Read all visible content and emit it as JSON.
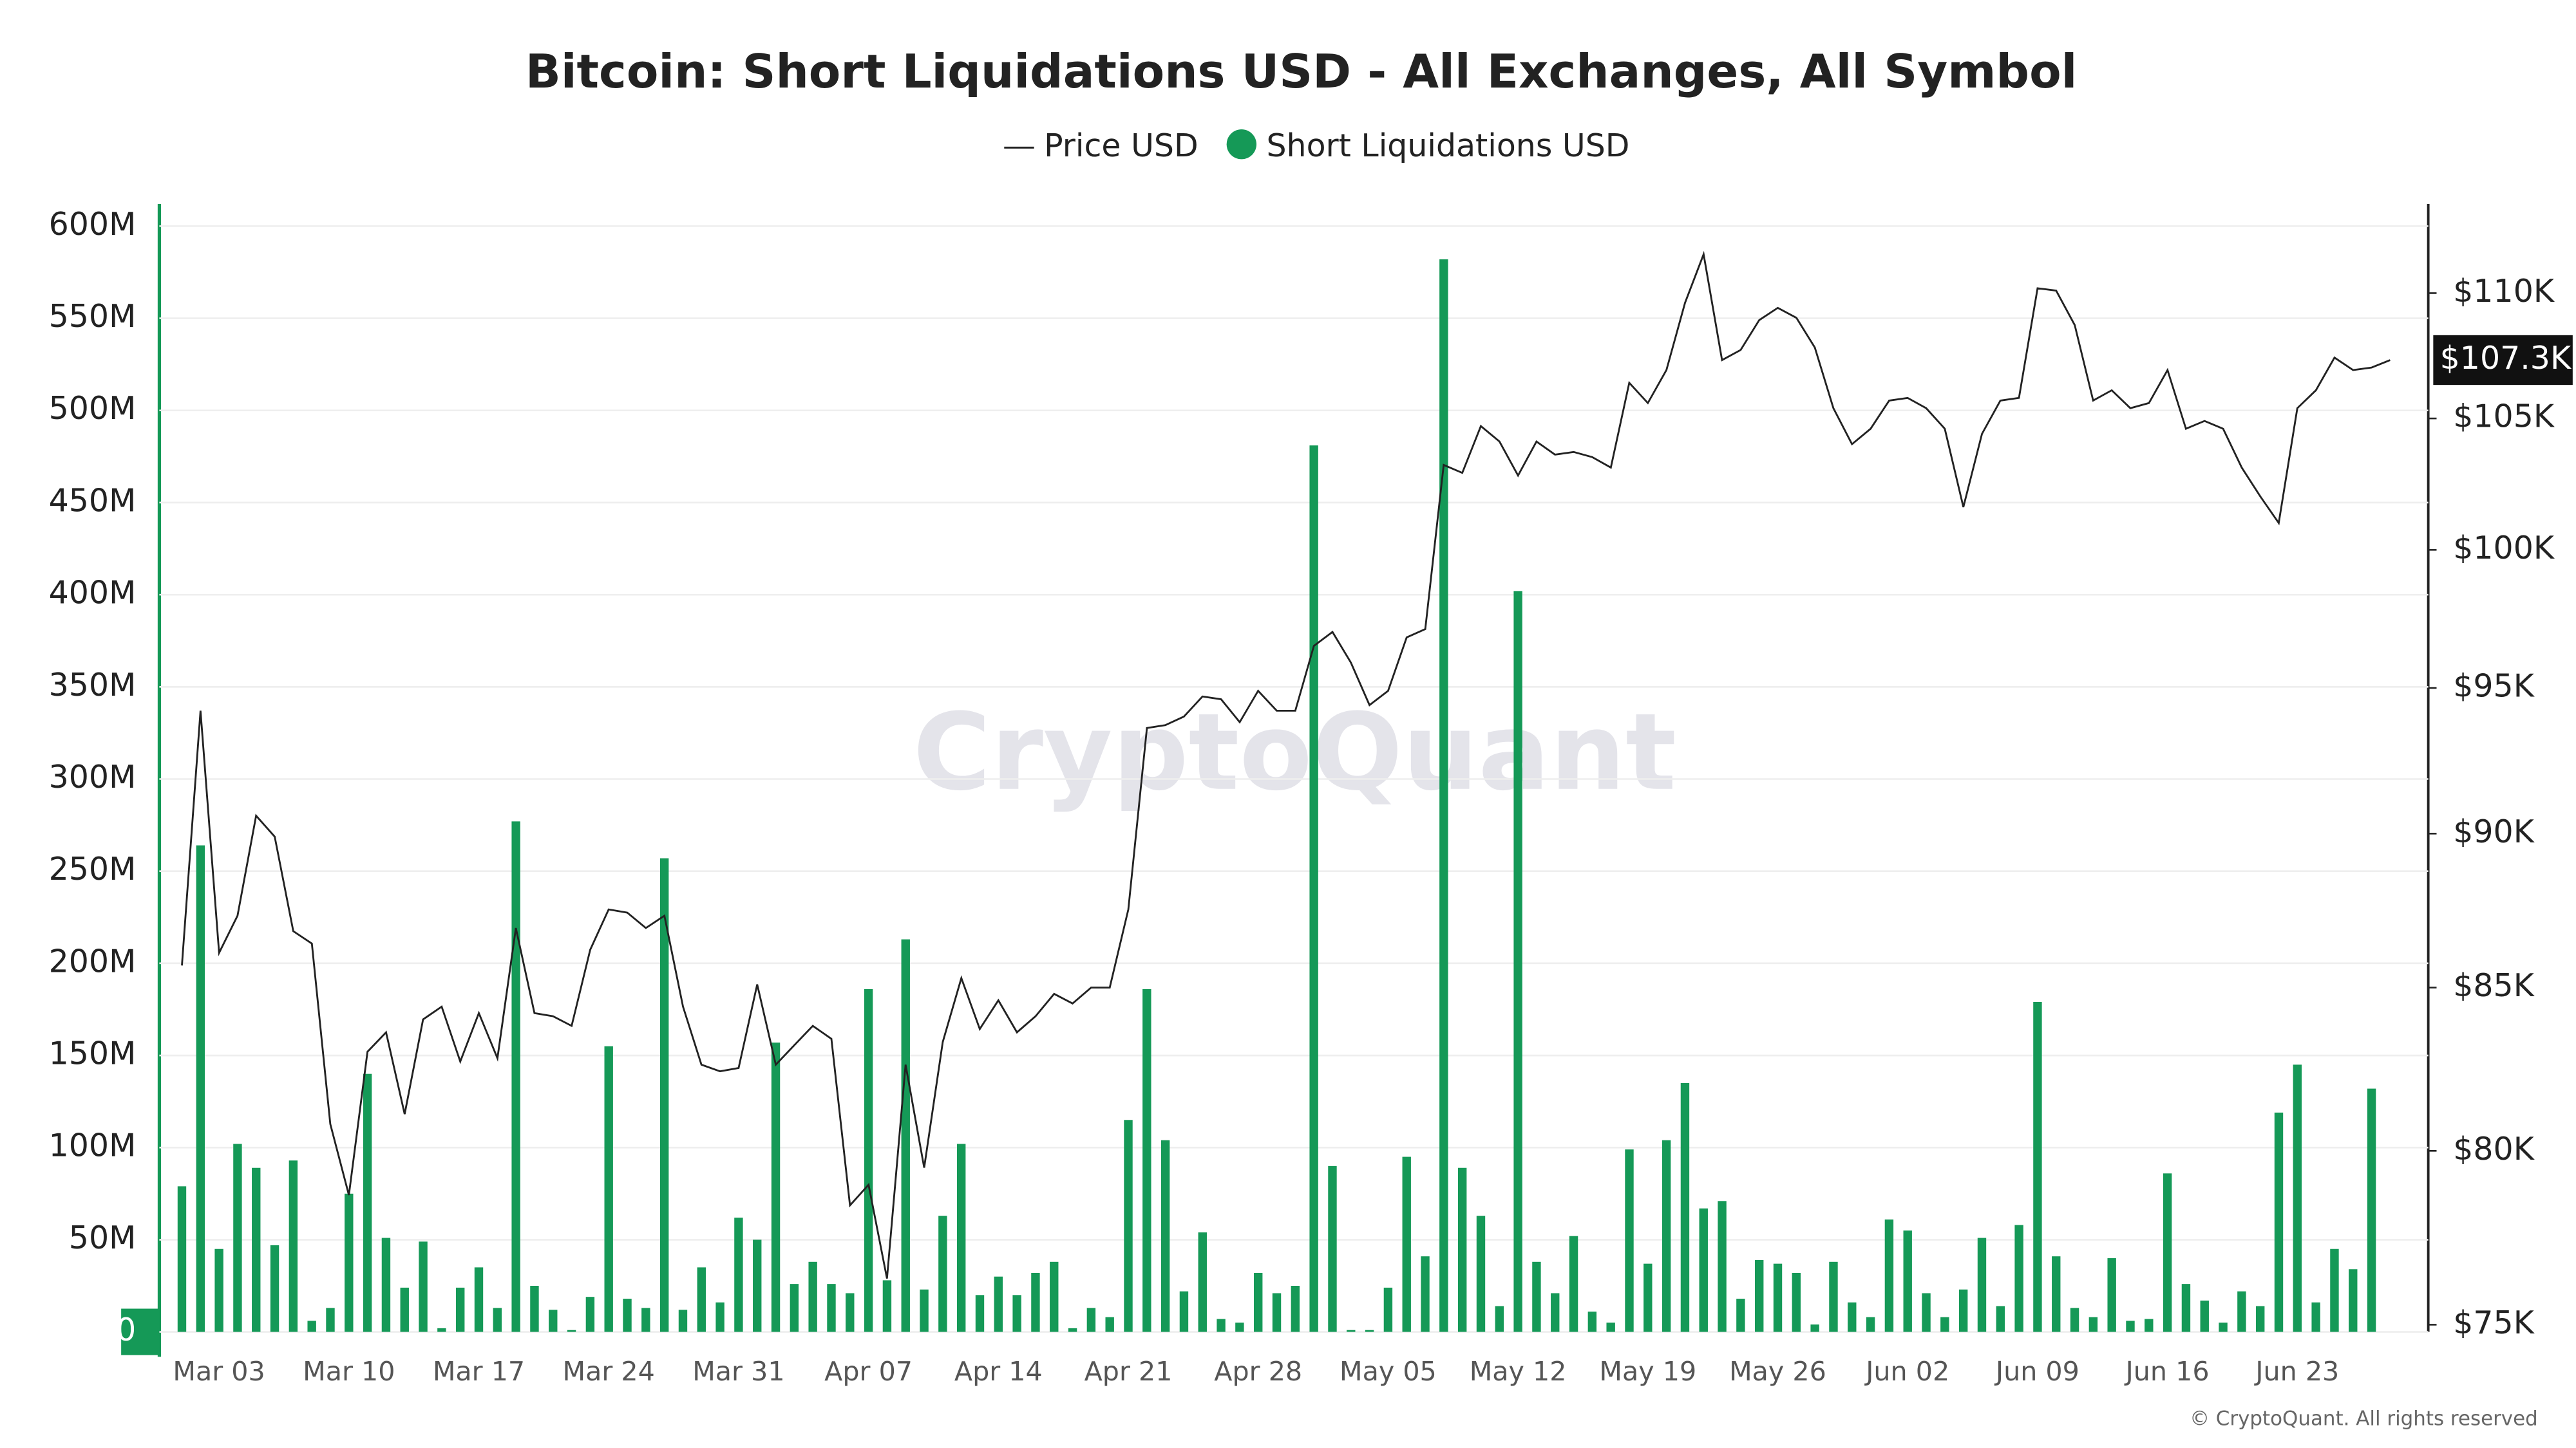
{
  "chart_data": {
    "type": "bar",
    "title": "Bitcoin: Short Liquidations USD - All Exchanges, All Symbol",
    "watermark": "CryptoQuant",
    "footer": "© CryptoQuant. All rights reserved",
    "last_price_label": "$107.3K",
    "grid": true,
    "y2_log": true,
    "categories": [
      null,
      null,
      "Mar 03",
      null,
      null,
      null,
      null,
      null,
      null,
      "Mar 10",
      null,
      null,
      null,
      null,
      null,
      null,
      "Mar 17",
      null,
      null,
      null,
      null,
      null,
      null,
      "Mar 24",
      null,
      null,
      null,
      null,
      null,
      null,
      "Mar 31",
      null,
      null,
      null,
      null,
      null,
      null,
      "Apr 07",
      null,
      null,
      null,
      null,
      null,
      null,
      "Apr 14",
      null,
      null,
      null,
      null,
      null,
      null,
      "Apr 21",
      null,
      null,
      null,
      null,
      null,
      null,
      "Apr 28",
      null,
      null,
      null,
      null,
      null,
      null,
      "May 05",
      null,
      null,
      null,
      null,
      null,
      null,
      "May 12",
      null,
      null,
      null,
      null,
      null,
      null,
      "May 19",
      null,
      null,
      null,
      null,
      null,
      null,
      "May 26",
      null,
      null,
      null,
      null,
      null,
      null,
      "Jun 02",
      null,
      null,
      null,
      null,
      null,
      null,
      "Jun 09",
      null,
      null,
      null,
      null,
      null,
      null,
      "Jun 16",
      null,
      null,
      null,
      null,
      null,
      null,
      "Jun 23",
      null,
      null,
      null,
      null,
      null
    ],
    "series": [
      {
        "name": "Short Liquidations USD",
        "type": "bar",
        "color": "#159957",
        "values": [
          79000000,
          264000000,
          45000000,
          102000000,
          89000000,
          47000000,
          93000000,
          6000000,
          13000000,
          75000000,
          140000000,
          51000000,
          24000000,
          49000000,
          2000000,
          24000000,
          35000000,
          13000000,
          277000000,
          25000000,
          12000000,
          1000000,
          19000000,
          155000000,
          18000000,
          13000000,
          257000000,
          12000000,
          35000000,
          16000000,
          62000000,
          50000000,
          157000000,
          26000000,
          38000000,
          26000000,
          21000000,
          186000000,
          28000000,
          213000000,
          23000000,
          63000000,
          102000000,
          20000000,
          30000000,
          20000000,
          32000000,
          38000000,
          2000000,
          13000000,
          8000000,
          115000000,
          186000000,
          104000000,
          22000000,
          54000000,
          7000000,
          5000000,
          32000000,
          21000000,
          25000000,
          481000000,
          90000000,
          1000000,
          1000000,
          24000000,
          95000000,
          41000000,
          582000000,
          89000000,
          63000000,
          14000000,
          402000000,
          38000000,
          21000000,
          52000000,
          11000000,
          5000000,
          99000000,
          37000000,
          104000000,
          135000000,
          67000000,
          71000000,
          18000000,
          39000000,
          37000000,
          32000000,
          4000000,
          38000000,
          16000000,
          8000000,
          61000000,
          55000000,
          21000000,
          8000000,
          23000000,
          51000000,
          14000000,
          58000000,
          179000000,
          41000000,
          13000000,
          8000000,
          40000000,
          6000000,
          7000000,
          86000000,
          26000000,
          17000000,
          5000000,
          22000000,
          14000000,
          119000000,
          145000000,
          16000000,
          45000000,
          34000000,
          132000000,
          null
        ]
      },
      {
        "name": "Price USD",
        "type": "line",
        "axis": "y2",
        "color": "#222222",
        "values": [
          85700,
          94200,
          86100,
          87300,
          90600,
          89900,
          86800,
          86400,
          80800,
          78700,
          83000,
          83600,
          81100,
          84000,
          84400,
          82700,
          84200,
          82800,
          86900,
          84200,
          84100,
          83800,
          86200,
          87500,
          87400,
          86900,
          87300,
          84400,
          82600,
          82400,
          82500,
          85100,
          82600,
          83200,
          83800,
          83400,
          78400,
          79000,
          76300,
          82600,
          79500,
          83300,
          85300,
          83700,
          84600,
          83600,
          84100,
          84800,
          84500,
          85000,
          85000,
          87500,
          93600,
          93700,
          94000,
          94700,
          94600,
          93800,
          94900,
          94200,
          94200,
          96500,
          97000,
          95900,
          94400,
          94900,
          96800,
          97100,
          103200,
          102900,
          104700,
          104100,
          102800,
          104100,
          103600,
          103700,
          103500,
          103100,
          106400,
          105600,
          106900,
          109600,
          111600,
          107300,
          107700,
          108900,
          109400,
          109000,
          107800,
          105400,
          104000,
          104600,
          105700,
          105800,
          105400,
          104600,
          101600,
          104400,
          105700,
          105800,
          110200,
          110100,
          108700,
          105700,
          106100,
          105400,
          105600,
          106900,
          104600,
          104900,
          104600,
          103100,
          102000,
          101000,
          105400,
          106100,
          107400,
          106900,
          107000,
          107300
        ]
      }
    ],
    "ylim": [
      0,
      612000000
    ],
    "yticks": [
      {
        "value": 0,
        "label": "0"
      },
      {
        "value": 50000000,
        "label": "50M"
      },
      {
        "value": 100000000,
        "label": "100M"
      },
      {
        "value": 150000000,
        "label": "150M"
      },
      {
        "value": 200000000,
        "label": "200M"
      },
      {
        "value": 250000000,
        "label": "250M"
      },
      {
        "value": 300000000,
        "label": "300M"
      },
      {
        "value": 350000000,
        "label": "350M"
      },
      {
        "value": 400000000,
        "label": "400M"
      },
      {
        "value": 450000000,
        "label": "450M"
      },
      {
        "value": 500000000,
        "label": "500M"
      },
      {
        "value": 550000000,
        "label": "550M"
      },
      {
        "value": 600000000,
        "label": "600M"
      }
    ],
    "y2lim": [
      74800,
      113700
    ],
    "y2ticks": [
      {
        "value": 75000,
        "label": "$75K"
      },
      {
        "value": 80000,
        "label": "$80K"
      },
      {
        "value": 85000,
        "label": "$85K"
      },
      {
        "value": 90000,
        "label": "$90K"
      },
      {
        "value": 95000,
        "label": "$95K"
      },
      {
        "value": 100000,
        "label": "$100K"
      },
      {
        "value": 105000,
        "label": "$105K"
      },
      {
        "value": 110000,
        "label": "$110K"
      }
    ]
  }
}
